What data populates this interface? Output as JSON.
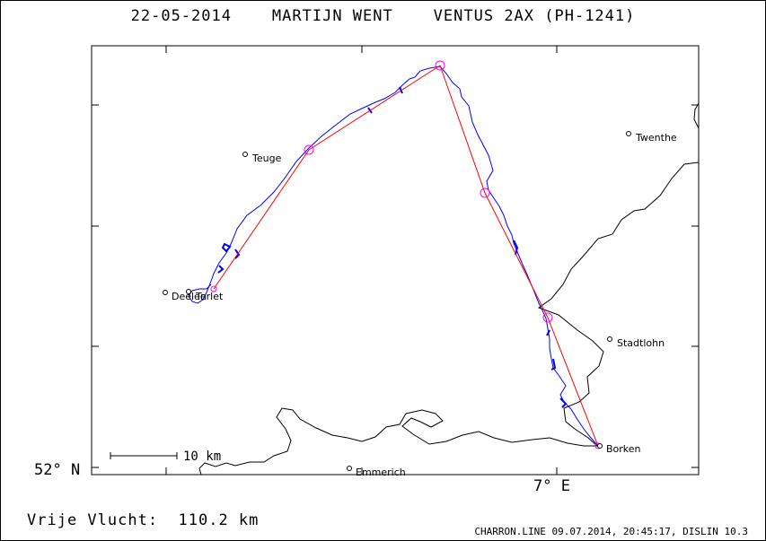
{
  "title": "22-05-2014    MARTIJN WENT    VENTUS 2AX (PH-1241)",
  "axes": {
    "lat_label": "52° N",
    "lon_label": "7° E"
  },
  "scale_bar": {
    "label": "10 km"
  },
  "distance": "Vrije Vlucht:  110.2 km",
  "footer": "CHARRON.LINE 09.07.2014, 20:45:17, DISLIN 10.3",
  "places": [
    {
      "name": "Teuge"
    },
    {
      "name": "Twenthe"
    },
    {
      "name": "Deelen"
    },
    {
      "name": "Terlet"
    },
    {
      "name": "Stadtlohn"
    },
    {
      "name": "Borken"
    },
    {
      "name": "Emmerich"
    }
  ],
  "colors": {
    "track": "#0000ff",
    "task_line": "#ff0000",
    "turnpoint": "#ff00ff",
    "border": "#000000"
  }
}
